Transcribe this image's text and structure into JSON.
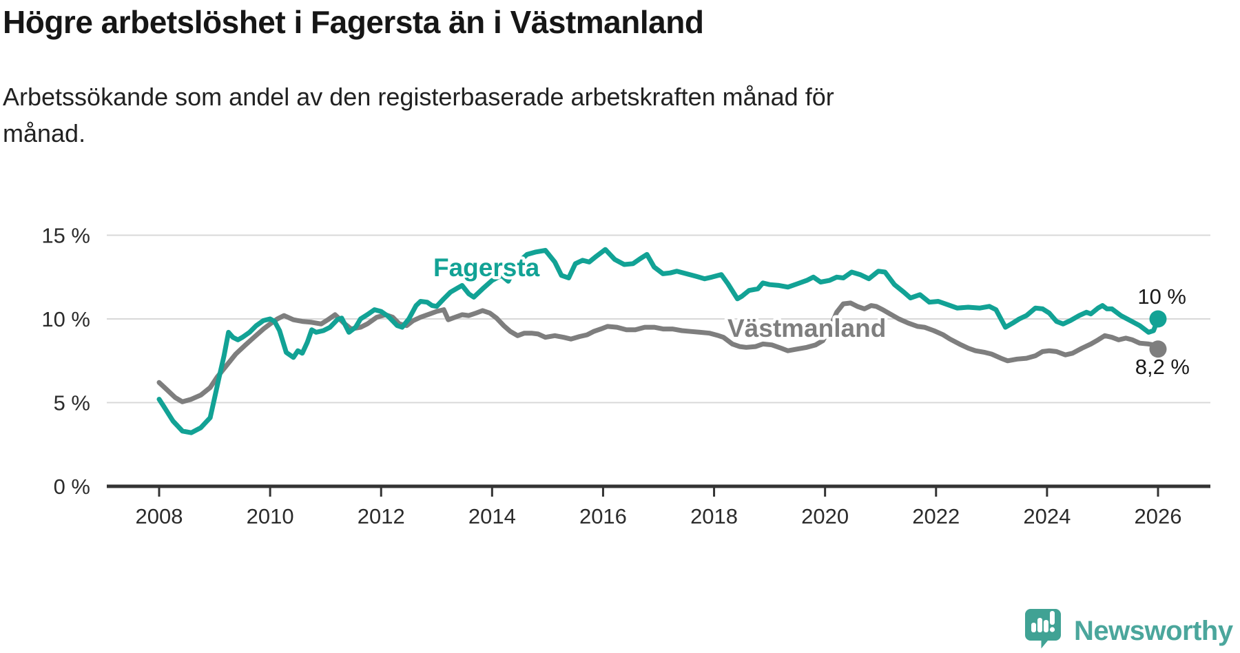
{
  "header": {
    "title": "Högre arbetslöshet i Fagersta än i Västmanland",
    "subtitle_line1": "Arbetssökande som andel av den registerbaserade arbetskraften månad för",
    "subtitle_line2": "månad."
  },
  "chart_data": {
    "type": "line",
    "title": "Högre arbetslöshet i Fagersta än i Västmanland",
    "subtitle": "Arbetssökande som andel av den registerbaserade arbetskraften månad för månad.",
    "xlabel": "",
    "ylabel": "",
    "xlim": [
      2007.06,
      2026.94
    ],
    "ylim": [
      0,
      15
    ],
    "grid": "horizontal",
    "legend_position": "inline-labels",
    "x_axis": {
      "ticks": [
        2008,
        2010,
        2012,
        2014,
        2016,
        2018,
        2020,
        2022,
        2024,
        2026
      ],
      "labels": [
        "2008",
        "2010",
        "2012",
        "2014",
        "2016",
        "2018",
        "2020",
        "2022",
        "2024",
        "2026"
      ]
    },
    "y_axis": {
      "ticks": [
        0,
        5,
        10,
        15
      ],
      "labels": [
        "0 %",
        "5 %",
        "10 %",
        "15 %"
      ]
    },
    "series": [
      {
        "name": "Västmanland",
        "color": "#7E7E7E",
        "end_value": 8.2,
        "end_annotation": "8,2 %",
        "points": [
          [
            2008.0,
            6.2
          ],
          [
            2008.13,
            5.8
          ],
          [
            2008.29,
            5.3
          ],
          [
            2008.42,
            5.05
          ],
          [
            2008.58,
            5.2
          ],
          [
            2008.75,
            5.45
          ],
          [
            2008.92,
            5.9
          ],
          [
            2009.04,
            6.5
          ],
          [
            2009.21,
            7.2
          ],
          [
            2009.38,
            7.9
          ],
          [
            2009.54,
            8.4
          ],
          [
            2009.71,
            8.9
          ],
          [
            2009.88,
            9.4
          ],
          [
            2010.0,
            9.7
          ],
          [
            2010.13,
            10.0
          ],
          [
            2010.25,
            10.2
          ],
          [
            2010.42,
            9.95
          ],
          [
            2010.58,
            9.85
          ],
          [
            2010.75,
            9.8
          ],
          [
            2010.92,
            9.7
          ],
          [
            2011.04,
            9.95
          ],
          [
            2011.17,
            10.25
          ],
          [
            2011.33,
            9.75
          ],
          [
            2011.46,
            9.4
          ],
          [
            2011.63,
            9.5
          ],
          [
            2011.75,
            9.7
          ],
          [
            2011.92,
            10.1
          ],
          [
            2012.08,
            10.25
          ],
          [
            2012.21,
            10.1
          ],
          [
            2012.33,
            9.7
          ],
          [
            2012.46,
            9.6
          ],
          [
            2012.58,
            9.9
          ],
          [
            2012.71,
            10.1
          ],
          [
            2012.88,
            10.3
          ],
          [
            2013.0,
            10.45
          ],
          [
            2013.13,
            10.55
          ],
          [
            2013.21,
            9.95
          ],
          [
            2013.33,
            10.1
          ],
          [
            2013.46,
            10.25
          ],
          [
            2013.58,
            10.2
          ],
          [
            2013.71,
            10.35
          ],
          [
            2013.83,
            10.5
          ],
          [
            2013.96,
            10.35
          ],
          [
            2014.08,
            10.05
          ],
          [
            2014.21,
            9.6
          ],
          [
            2014.33,
            9.25
          ],
          [
            2014.46,
            9.0
          ],
          [
            2014.58,
            9.15
          ],
          [
            2014.71,
            9.15
          ],
          [
            2014.83,
            9.1
          ],
          [
            2014.96,
            8.9
          ],
          [
            2015.13,
            9.0
          ],
          [
            2015.29,
            8.9
          ],
          [
            2015.42,
            8.8
          ],
          [
            2015.58,
            8.95
          ],
          [
            2015.71,
            9.05
          ],
          [
            2015.83,
            9.25
          ],
          [
            2015.96,
            9.4
          ],
          [
            2016.08,
            9.55
          ],
          [
            2016.25,
            9.5
          ],
          [
            2016.42,
            9.35
          ],
          [
            2016.58,
            9.35
          ],
          [
            2016.75,
            9.5
          ],
          [
            2016.92,
            9.5
          ],
          [
            2017.08,
            9.4
          ],
          [
            2017.25,
            9.4
          ],
          [
            2017.42,
            9.3
          ],
          [
            2017.58,
            9.25
          ],
          [
            2017.75,
            9.2
          ],
          [
            2017.92,
            9.15
          ],
          [
            2018.08,
            9.0
          ],
          [
            2018.17,
            8.9
          ],
          [
            2018.33,
            8.5
          ],
          [
            2018.46,
            8.35
          ],
          [
            2018.58,
            8.3
          ],
          [
            2018.75,
            8.35
          ],
          [
            2018.88,
            8.5
          ],
          [
            2019.04,
            8.45
          ],
          [
            2019.21,
            8.25
          ],
          [
            2019.33,
            8.1
          ],
          [
            2019.5,
            8.2
          ],
          [
            2019.67,
            8.3
          ],
          [
            2019.83,
            8.45
          ],
          [
            2019.96,
            8.7
          ],
          [
            2020.08,
            9.4
          ],
          [
            2020.21,
            10.4
          ],
          [
            2020.33,
            10.9
          ],
          [
            2020.46,
            10.95
          ],
          [
            2020.58,
            10.75
          ],
          [
            2020.71,
            10.6
          ],
          [
            2020.83,
            10.8
          ],
          [
            2020.92,
            10.75
          ],
          [
            2021.04,
            10.55
          ],
          [
            2021.17,
            10.3
          ],
          [
            2021.33,
            10.0
          ],
          [
            2021.5,
            9.75
          ],
          [
            2021.67,
            9.55
          ],
          [
            2021.79,
            9.5
          ],
          [
            2021.96,
            9.3
          ],
          [
            2022.13,
            9.05
          ],
          [
            2022.25,
            8.8
          ],
          [
            2022.42,
            8.5
          ],
          [
            2022.58,
            8.25
          ],
          [
            2022.71,
            8.1
          ],
          [
            2022.88,
            8.0
          ],
          [
            2023.0,
            7.9
          ],
          [
            2023.17,
            7.65
          ],
          [
            2023.29,
            7.5
          ],
          [
            2023.46,
            7.6
          ],
          [
            2023.63,
            7.65
          ],
          [
            2023.79,
            7.8
          ],
          [
            2023.92,
            8.05
          ],
          [
            2024.04,
            8.1
          ],
          [
            2024.17,
            8.05
          ],
          [
            2024.33,
            7.85
          ],
          [
            2024.46,
            7.95
          ],
          [
            2024.63,
            8.25
          ],
          [
            2024.79,
            8.5
          ],
          [
            2024.92,
            8.75
          ],
          [
            2025.04,
            9.0
          ],
          [
            2025.17,
            8.9
          ],
          [
            2025.29,
            8.75
          ],
          [
            2025.42,
            8.85
          ],
          [
            2025.54,
            8.75
          ],
          [
            2025.67,
            8.55
          ],
          [
            2025.83,
            8.5
          ],
          [
            2025.92,
            8.45
          ],
          [
            2026.0,
            8.2
          ]
        ]
      },
      {
        "name": "Fagersta",
        "color": "#12A295",
        "end_value": 10.0,
        "end_annotation": "10 %",
        "points": [
          [
            2008.0,
            5.2
          ],
          [
            2008.08,
            4.8
          ],
          [
            2008.25,
            3.9
          ],
          [
            2008.42,
            3.3
          ],
          [
            2008.58,
            3.2
          ],
          [
            2008.75,
            3.5
          ],
          [
            2008.92,
            4.1
          ],
          [
            2009.0,
            5.3
          ],
          [
            2009.08,
            6.5
          ],
          [
            2009.17,
            7.8
          ],
          [
            2009.25,
            9.2
          ],
          [
            2009.33,
            8.9
          ],
          [
            2009.42,
            8.75
          ],
          [
            2009.5,
            8.9
          ],
          [
            2009.63,
            9.2
          ],
          [
            2009.75,
            9.6
          ],
          [
            2009.88,
            9.9
          ],
          [
            2010.0,
            10.0
          ],
          [
            2010.08,
            9.85
          ],
          [
            2010.17,
            9.3
          ],
          [
            2010.29,
            8.0
          ],
          [
            2010.42,
            7.7
          ],
          [
            2010.5,
            8.1
          ],
          [
            2010.58,
            7.95
          ],
          [
            2010.67,
            8.6
          ],
          [
            2010.75,
            9.35
          ],
          [
            2010.83,
            9.2
          ],
          [
            2010.96,
            9.3
          ],
          [
            2011.08,
            9.5
          ],
          [
            2011.21,
            9.95
          ],
          [
            2011.29,
            10.05
          ],
          [
            2011.42,
            9.2
          ],
          [
            2011.54,
            9.5
          ],
          [
            2011.63,
            10.0
          ],
          [
            2011.75,
            10.25
          ],
          [
            2011.88,
            10.55
          ],
          [
            2012.0,
            10.45
          ],
          [
            2012.13,
            10.15
          ],
          [
            2012.29,
            9.6
          ],
          [
            2012.38,
            9.5
          ],
          [
            2012.5,
            10.0
          ],
          [
            2012.63,
            10.8
          ],
          [
            2012.71,
            11.05
          ],
          [
            2012.83,
            11.0
          ],
          [
            2012.92,
            10.8
          ],
          [
            2013.0,
            10.75
          ],
          [
            2013.13,
            11.2
          ],
          [
            2013.25,
            11.6
          ],
          [
            2013.38,
            11.85
          ],
          [
            2013.46,
            12.0
          ],
          [
            2013.58,
            11.5
          ],
          [
            2013.67,
            11.3
          ],
          [
            2013.83,
            11.8
          ],
          [
            2014.0,
            12.3
          ],
          [
            2014.17,
            12.6
          ],
          [
            2014.29,
            12.25
          ],
          [
            2014.46,
            13.35
          ],
          [
            2014.63,
            13.85
          ],
          [
            2014.79,
            14.0
          ],
          [
            2014.96,
            14.1
          ],
          [
            2015.13,
            13.4
          ],
          [
            2015.25,
            12.6
          ],
          [
            2015.38,
            12.45
          ],
          [
            2015.5,
            13.3
          ],
          [
            2015.63,
            13.5
          ],
          [
            2015.75,
            13.4
          ],
          [
            2015.88,
            13.75
          ],
          [
            2016.04,
            14.15
          ],
          [
            2016.21,
            13.55
          ],
          [
            2016.38,
            13.25
          ],
          [
            2016.54,
            13.3
          ],
          [
            2016.67,
            13.6
          ],
          [
            2016.79,
            13.85
          ],
          [
            2016.92,
            13.1
          ],
          [
            2017.08,
            12.7
          ],
          [
            2017.21,
            12.75
          ],
          [
            2017.33,
            12.85
          ],
          [
            2017.5,
            12.7
          ],
          [
            2017.67,
            12.55
          ],
          [
            2017.83,
            12.4
          ],
          [
            2017.96,
            12.5
          ],
          [
            2018.13,
            12.65
          ],
          [
            2018.25,
            12.1
          ],
          [
            2018.42,
            11.2
          ],
          [
            2018.5,
            11.35
          ],
          [
            2018.63,
            11.7
          ],
          [
            2018.79,
            11.8
          ],
          [
            2018.88,
            12.15
          ],
          [
            2019.0,
            12.05
          ],
          [
            2019.17,
            12.0
          ],
          [
            2019.33,
            11.9
          ],
          [
            2019.5,
            12.1
          ],
          [
            2019.67,
            12.3
          ],
          [
            2019.79,
            12.5
          ],
          [
            2019.92,
            12.2
          ],
          [
            2020.08,
            12.3
          ],
          [
            2020.21,
            12.5
          ],
          [
            2020.33,
            12.45
          ],
          [
            2020.48,
            12.8
          ],
          [
            2020.63,
            12.65
          ],
          [
            2020.79,
            12.4
          ],
          [
            2020.96,
            12.85
          ],
          [
            2021.08,
            12.8
          ],
          [
            2021.25,
            12.05
          ],
          [
            2021.42,
            11.6
          ],
          [
            2021.54,
            11.25
          ],
          [
            2021.71,
            11.45
          ],
          [
            2021.88,
            11.0
          ],
          [
            2022.04,
            11.05
          ],
          [
            2022.21,
            10.85
          ],
          [
            2022.38,
            10.65
          ],
          [
            2022.58,
            10.7
          ],
          [
            2022.79,
            10.65
          ],
          [
            2022.96,
            10.75
          ],
          [
            2023.08,
            10.55
          ],
          [
            2023.25,
            9.5
          ],
          [
            2023.38,
            9.75
          ],
          [
            2023.5,
            10.0
          ],
          [
            2023.63,
            10.2
          ],
          [
            2023.79,
            10.65
          ],
          [
            2023.92,
            10.6
          ],
          [
            2024.04,
            10.35
          ],
          [
            2024.17,
            9.85
          ],
          [
            2024.29,
            9.7
          ],
          [
            2024.42,
            9.9
          ],
          [
            2024.58,
            10.2
          ],
          [
            2024.71,
            10.4
          ],
          [
            2024.79,
            10.3
          ],
          [
            2024.92,
            10.65
          ],
          [
            2025.0,
            10.8
          ],
          [
            2025.08,
            10.6
          ],
          [
            2025.17,
            10.6
          ],
          [
            2025.33,
            10.2
          ],
          [
            2025.5,
            9.9
          ],
          [
            2025.67,
            9.6
          ],
          [
            2025.83,
            9.2
          ],
          [
            2025.92,
            9.3
          ],
          [
            2026.0,
            10.0
          ]
        ]
      }
    ]
  },
  "branding": {
    "logo_text": "Newsworthy",
    "logo_icon": "newsworthy-speech-bubble-bar-chart-icon",
    "logo_color": "#4BA69C"
  },
  "colors": {
    "fagersta_line": "#12A295",
    "vastmanland_line": "#7E7E7E",
    "gridline": "#d8d8d8",
    "axis": "#333333",
    "annotation_text": "#1a1a1a"
  }
}
